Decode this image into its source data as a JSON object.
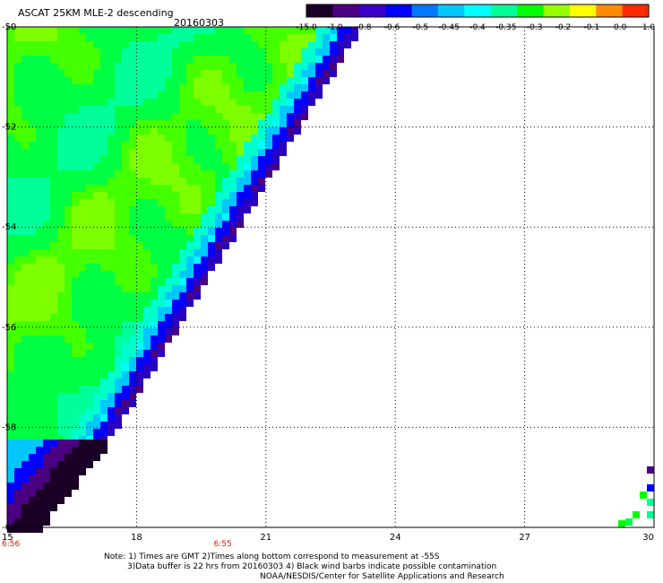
{
  "header": {
    "title": "ASCAT 25KM MLE-2 descending",
    "date": "20160303"
  },
  "colorbar": {
    "labels": [
      "-15.0",
      "-1.0",
      "-0.8",
      "-0.6",
      "-0.5",
      "-0.45",
      "-0.4",
      "-0.35",
      "-0.3",
      "-0.2",
      "-0.1",
      "0.0",
      "1.0"
    ],
    "colors": [
      "#1a0026",
      "#4b0082",
      "#3a00c8",
      "#0000ff",
      "#0078ff",
      "#00c8ff",
      "#00ffff",
      "#00ff96",
      "#00ff00",
      "#96ff00",
      "#ffff00",
      "#ff8c00",
      "#ff2a00"
    ]
  },
  "map": {
    "lon_labels": [
      "15",
      "18",
      "21",
      "24",
      "27",
      "30"
    ],
    "lat_labels": [
      "-50",
      "-52",
      "-54",
      "-56",
      "-58",
      "-60"
    ],
    "time_labels": [
      {
        "lon": 15,
        "text": "6:56"
      },
      {
        "lon": 20,
        "text": "6:55"
      }
    ],
    "lon_range": [
      15,
      30
    ],
    "lat_range": [
      -60,
      -50
    ],
    "time_color": "#cc2200"
  },
  "footer": {
    "note_line1": "Note: 1) Times are GMT 2)Times along bottom correspond to measurement at -55S",
    "note_line2": "3)Data buffer is 22 hrs from 20160303 4) Black wind barbs indicate possible contamination",
    "credit": "NOAA/NESDIS/Center for Satellite Applications and Research"
  }
}
